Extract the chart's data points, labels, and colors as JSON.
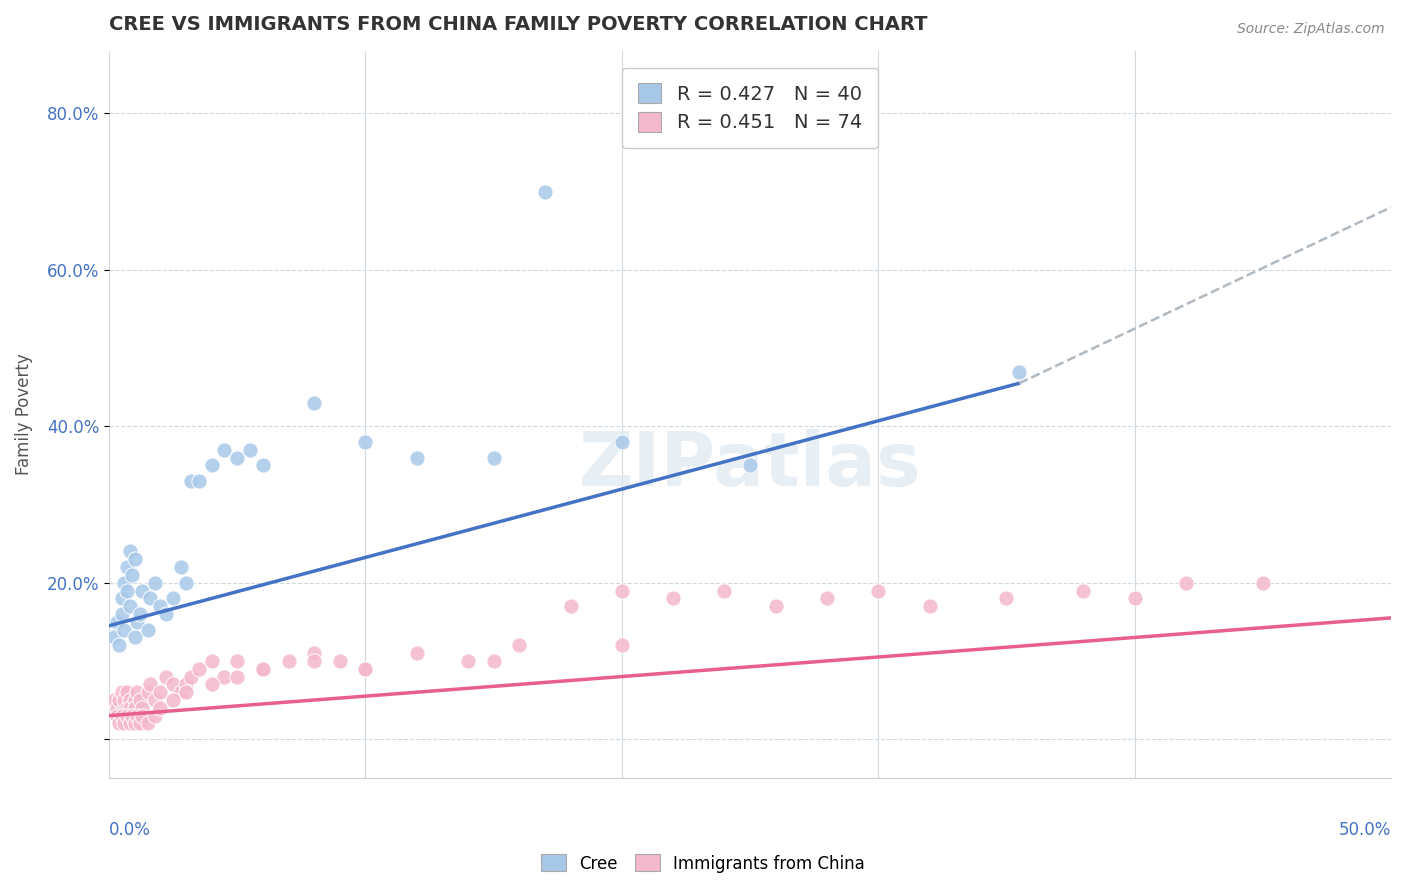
{
  "title": "CREE VS IMMIGRANTS FROM CHINA FAMILY POVERTY CORRELATION CHART",
  "source": "Source: ZipAtlas.com",
  "ylabel": "Family Poverty",
  "legend_entry1": "R = 0.427   N = 40",
  "legend_entry2": "R = 0.451   N = 74",
  "legend_label1": "Cree",
  "legend_label2": "Immigrants from China",
  "cree_color": "#a8c8e8",
  "china_color": "#f4b8cc",
  "cree_line_color": "#4472c4",
  "china_line_color": "#e8608a",
  "gray_line_color": "#b0b8c0",
  "watermark": "ZIPatlas",
  "xlim": [
    0.0,
    0.5
  ],
  "ylim": [
    -0.05,
    0.88
  ],
  "ytick_vals": [
    0.0,
    0.2,
    0.4,
    0.6,
    0.8
  ],
  "ytick_labels": [
    "",
    "20.0%",
    "40.0%",
    "60.0%",
    "80.0%"
  ],
  "cree_line_x0": 0.0,
  "cree_line_y0": 0.145,
  "cree_line_x1": 0.355,
  "cree_line_y1": 0.455,
  "china_line_x0": 0.0,
  "china_line_y0": 0.03,
  "china_line_x1": 0.5,
  "china_line_y1": 0.155,
  "gray_line_x0": 0.355,
  "gray_line_y0": 0.455,
  "gray_line_x1": 0.5,
  "gray_line_y1": 0.68,
  "cree_scatter_x": [
    0.002,
    0.003,
    0.004,
    0.005,
    0.005,
    0.006,
    0.006,
    0.007,
    0.007,
    0.008,
    0.008,
    0.009,
    0.01,
    0.01,
    0.011,
    0.012,
    0.013,
    0.015,
    0.016,
    0.018,
    0.02,
    0.022,
    0.025,
    0.028,
    0.03,
    0.032,
    0.035,
    0.04,
    0.045,
    0.05,
    0.055,
    0.06,
    0.08,
    0.1,
    0.12,
    0.15,
    0.17,
    0.2,
    0.25,
    0.355
  ],
  "cree_scatter_y": [
    0.13,
    0.15,
    0.12,
    0.16,
    0.18,
    0.14,
    0.2,
    0.19,
    0.22,
    0.17,
    0.24,
    0.21,
    0.23,
    0.13,
    0.15,
    0.16,
    0.19,
    0.14,
    0.18,
    0.2,
    0.17,
    0.16,
    0.18,
    0.22,
    0.2,
    0.33,
    0.33,
    0.35,
    0.37,
    0.36,
    0.37,
    0.35,
    0.43,
    0.38,
    0.36,
    0.36,
    0.7,
    0.38,
    0.35,
    0.47
  ],
  "china_scatter_x": [
    0.002,
    0.003,
    0.004,
    0.005,
    0.005,
    0.006,
    0.006,
    0.007,
    0.007,
    0.008,
    0.008,
    0.009,
    0.01,
    0.01,
    0.011,
    0.012,
    0.013,
    0.015,
    0.016,
    0.018,
    0.02,
    0.022,
    0.025,
    0.028,
    0.03,
    0.032,
    0.035,
    0.04,
    0.045,
    0.05,
    0.06,
    0.07,
    0.08,
    0.09,
    0.1,
    0.12,
    0.14,
    0.16,
    0.18,
    0.2,
    0.22,
    0.24,
    0.26,
    0.28,
    0.3,
    0.32,
    0.35,
    0.38,
    0.4,
    0.42,
    0.003,
    0.004,
    0.005,
    0.006,
    0.007,
    0.008,
    0.009,
    0.01,
    0.011,
    0.012,
    0.013,
    0.015,
    0.018,
    0.02,
    0.025,
    0.03,
    0.04,
    0.05,
    0.06,
    0.08,
    0.1,
    0.15,
    0.2,
    0.45
  ],
  "china_scatter_y": [
    0.05,
    0.04,
    0.05,
    0.06,
    0.03,
    0.04,
    0.05,
    0.04,
    0.06,
    0.05,
    0.04,
    0.03,
    0.05,
    0.04,
    0.06,
    0.05,
    0.04,
    0.06,
    0.07,
    0.05,
    0.06,
    0.08,
    0.07,
    0.06,
    0.07,
    0.08,
    0.09,
    0.1,
    0.08,
    0.1,
    0.09,
    0.1,
    0.11,
    0.1,
    0.09,
    0.11,
    0.1,
    0.12,
    0.17,
    0.19,
    0.18,
    0.19,
    0.17,
    0.18,
    0.19,
    0.17,
    0.18,
    0.19,
    0.18,
    0.2,
    0.03,
    0.02,
    0.03,
    0.02,
    0.03,
    0.02,
    0.03,
    0.02,
    0.03,
    0.02,
    0.03,
    0.02,
    0.03,
    0.04,
    0.05,
    0.06,
    0.07,
    0.08,
    0.09,
    0.1,
    0.09,
    0.1,
    0.12,
    0.2
  ]
}
